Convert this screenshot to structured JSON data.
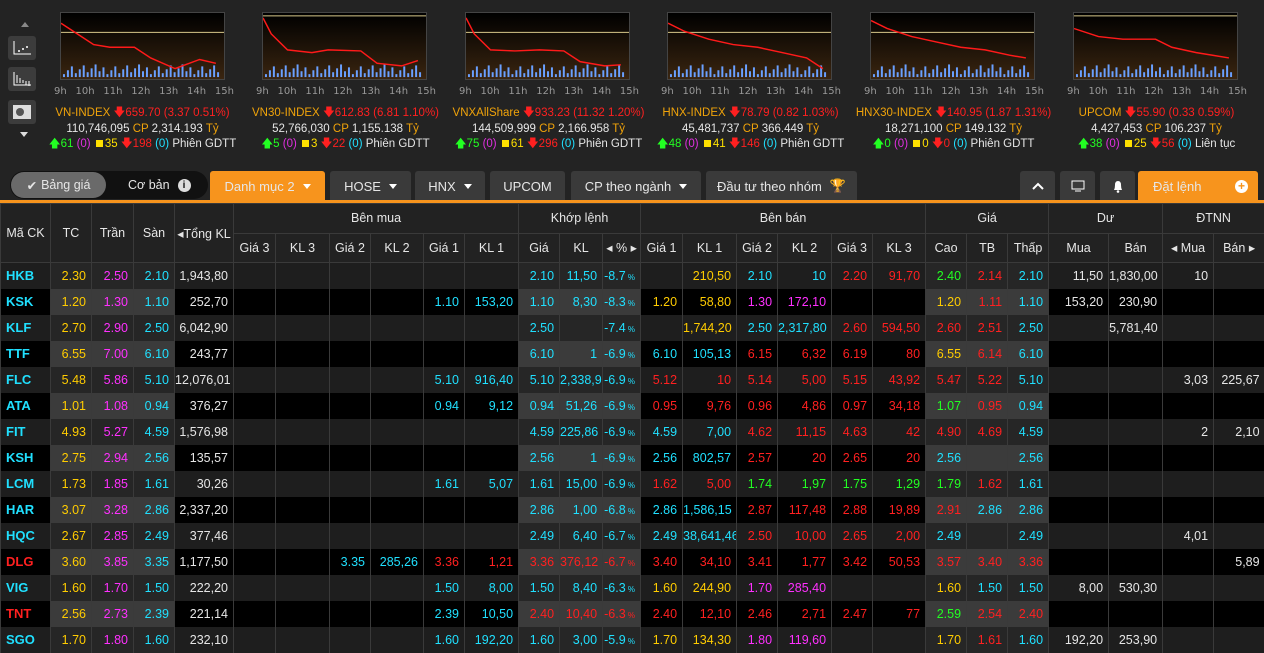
{
  "sidebar": {
    "icons": [
      "scatter-chart-icon",
      "bar-chart-icon",
      "layout-icon"
    ]
  },
  "mini_charts": {
    "time_labels": [
      "9h",
      "10h",
      "11h",
      "12h",
      "13h",
      "14h",
      "15h"
    ]
  },
  "indices": [
    {
      "name": "VN-INDEX",
      "value": "659.70",
      "change": "(3.37 0.51%)",
      "volume": "110,746,095",
      "cp": "CP",
      "amount": "2,314.193",
      "unit": "Tỷ",
      "up": "61",
      "up_c": "(0)",
      "ref": "35",
      "down": "198",
      "down_c": "(0)",
      "session": "Phiên GDTT"
    },
    {
      "name": "VN30-INDEX",
      "value": "612.83",
      "change": "(6.81 1.10%)",
      "volume": "52,766,030",
      "cp": "CP",
      "amount": "1,155.138",
      "unit": "Tỷ",
      "up": "5",
      "up_c": "(0)",
      "ref": "3",
      "down": "22",
      "down_c": "(0)",
      "session": "Phiên GDTT"
    },
    {
      "name": "VNXAllShare",
      "value": "933.23",
      "change": "(11.32 1.20%)",
      "volume": "144,509,999",
      "cp": "CP",
      "amount": "2,166.958",
      "unit": "Tỷ",
      "up": "75",
      "up_c": "(0)",
      "ref": "61",
      "down": "296",
      "down_c": "(0)",
      "session": "Phiên GDTT"
    },
    {
      "name": "HNX-INDEX",
      "value": "78.79",
      "change": "(0.82 1.03%)",
      "volume": "45,481,737",
      "cp": "CP",
      "amount": "366.449",
      "unit": "Tỷ",
      "up": "48",
      "up_c": "(0)",
      "ref": "41",
      "down": "146",
      "down_c": "(0)",
      "session": "Phiên GDTT"
    },
    {
      "name": "HNX30-INDEX",
      "value": "140.95",
      "change": "(1.87 1.31%)",
      "volume": "18,271,100",
      "cp": "CP",
      "amount": "149.132",
      "unit": "Tỷ",
      "up": "0",
      "up_c": "(0)",
      "ref": "0",
      "down": "0",
      "down_c": "(0)",
      "session": "Phiên GDTT"
    },
    {
      "name": "UPCOM",
      "value": "55.90",
      "change": "(0.33 0.59%)",
      "volume": "4,427,453",
      "cp": "CP",
      "amount": "106.237",
      "unit": "Tỷ",
      "up": "38",
      "up_c": "(0)",
      "ref": "25",
      "down": "56",
      "down_c": "(0)",
      "session": "Liên tục"
    }
  ],
  "toolbar": {
    "toggle_active": "Bảng giá",
    "toggle_other": "Cơ bản",
    "tabs": [
      {
        "label": "Danh mục 2",
        "caret": true,
        "active": true
      },
      {
        "label": "HOSE",
        "caret": true
      },
      {
        "label": "HNX",
        "caret": true
      },
      {
        "label": "UPCOM"
      },
      {
        "label": "CP theo ngành",
        "caret": true
      },
      {
        "label": "Đầu tư theo nhóm"
      }
    ],
    "order_label": "Đặt lệnh"
  },
  "colors": {
    "ceiling": "#ff30ff",
    "floor": "#20e0ff",
    "ref": "#ffcc00",
    "up": "#22ff22",
    "down": "#ff2020",
    "text": "#e6e6e6",
    "accent": "#f7941d"
  },
  "table": {
    "groups": {
      "symbol": "Mã CK",
      "tc": "TC",
      "tran": "Trần",
      "san": "Sàn",
      "total": "Tổng KL",
      "buy": "Bên mua",
      "match": "Khớp lệnh",
      "sell": "Bên bán",
      "price": "Giá",
      "remain": "Dư",
      "foreign": "ĐTNN"
    },
    "subheaders": [
      "Giá 3",
      "KL 3",
      "Giá 2",
      "KL 2",
      "Giá 1",
      "KL 1",
      "Giá",
      "KL",
      "%",
      "Giá 1",
      "KL 1",
      "Giá 2",
      "KL 2",
      "Giá 3",
      "KL 3",
      "Cao",
      "TB",
      "Thấp",
      "Mua",
      "Bán",
      "Mua",
      "Bán"
    ],
    "rows": [
      [
        "HKB",
        "2.30",
        "2.50",
        "2.10",
        "1,943,80",
        "",
        "",
        "",
        "",
        "",
        "",
        "2.10",
        "11,50",
        "-8.7",
        "",
        "210,50",
        "2.10",
        "10",
        "2.20",
        "91,70",
        "2.40",
        "2.14",
        "2.10",
        "11,50",
        "1,830,00",
        "10",
        ""
      ],
      [
        "KSK",
        "1.20",
        "1.30",
        "1.10",
        "252,70",
        "",
        "",
        "",
        "",
        "1.10",
        "153,20",
        "1.10",
        "8,30",
        "-8.3",
        "1.20",
        "58,80",
        "1.30",
        "172,10",
        "",
        "",
        "1.20",
        "1.11",
        "1.10",
        "153,20",
        "230,90",
        "",
        ""
      ],
      [
        "KLF",
        "2.70",
        "2.90",
        "2.50",
        "6,042,90",
        "",
        "",
        "",
        "",
        "",
        "",
        "2.50",
        "",
        "-7.4",
        "",
        "1,744,20",
        "2.50",
        "2,317,80",
        "2.60",
        "594,50",
        "2.60",
        "2.51",
        "2.50",
        "",
        "5,781,40",
        "",
        ""
      ],
      [
        "TTF",
        "6.55",
        "7.00",
        "6.10",
        "243,77",
        "",
        "",
        "",
        "",
        "",
        "",
        "6.10",
        "1",
        "-6.9",
        "6.10",
        "105,13",
        "6.15",
        "6,32",
        "6.19",
        "80",
        "6.55",
        "6.14",
        "6.10",
        "",
        "",
        "",
        ""
      ],
      [
        "FLC",
        "5.48",
        "5.86",
        "5.10",
        "12,076,01",
        "",
        "",
        "",
        "",
        "5.10",
        "916,40",
        "5.10",
        "2,338,9",
        "-6.9",
        "5.12",
        "10",
        "5.14",
        "5,00",
        "5.15",
        "43,92",
        "5.47",
        "5.22",
        "5.10",
        "",
        "",
        "3,03",
        "225,67"
      ],
      [
        "ATA",
        "1.01",
        "1.08",
        "0.94",
        "376,27",
        "",
        "",
        "",
        "",
        "0.94",
        "9,12",
        "0.94",
        "51,26",
        "-6.9",
        "0.95",
        "9,76",
        "0.96",
        "4,86",
        "0.97",
        "34,18",
        "1.07",
        "0.95",
        "0.94",
        "",
        "",
        "",
        ""
      ],
      [
        "FIT",
        "4.93",
        "5.27",
        "4.59",
        "1,576,98",
        "",
        "",
        "",
        "",
        "",
        "",
        "4.59",
        "225,86",
        "-6.9",
        "4.59",
        "7,00",
        "4.62",
        "11,15",
        "4.63",
        "42",
        "4.90",
        "4.69",
        "4.59",
        "",
        "",
        "2",
        "2,10"
      ],
      [
        "KSH",
        "2.75",
        "2.94",
        "2.56",
        "135,57",
        "",
        "",
        "",
        "",
        "",
        "",
        "2.56",
        "1",
        "-6.9",
        "2.56",
        "802,57",
        "2.57",
        "20",
        "2.65",
        "20",
        "2.56",
        "",
        "2.56",
        "",
        "",
        "",
        ""
      ],
      [
        "LCM",
        "1.73",
        "1.85",
        "1.61",
        "30,26",
        "",
        "",
        "",
        "",
        "1.61",
        "5,07",
        "1.61",
        "15,00",
        "-6.9",
        "1.62",
        "5,00",
        "1.74",
        "1,97",
        "1.75",
        "1,29",
        "1.79",
        "1.62",
        "1.61",
        "",
        "",
        "",
        ""
      ],
      [
        "HAR",
        "3.07",
        "3.28",
        "2.86",
        "2,337,20",
        "",
        "",
        "",
        "",
        "",
        "",
        "2.86",
        "1,00",
        "-6.8",
        "2.86",
        "1,586,15",
        "2.87",
        "117,48",
        "2.88",
        "19,89",
        "2.91",
        "2.86",
        "2.86",
        "",
        "",
        "",
        ""
      ],
      [
        "HQC",
        "2.67",
        "2.85",
        "2.49",
        "377,46",
        "",
        "",
        "",
        "",
        "",
        "",
        "2.49",
        "6,40",
        "-6.7",
        "2.49",
        "38,641,46",
        "2.50",
        "10,00",
        "2.65",
        "2,00",
        "2.49",
        "",
        "2.49",
        "",
        "",
        "4,01",
        ""
      ],
      [
        "DLG",
        "3.60",
        "3.85",
        "3.35",
        "1,177,50",
        "",
        "",
        "3.35",
        "285,26",
        "3.36",
        "1,21",
        "3.36",
        "376,12",
        "-6.7",
        "3.40",
        "34,10",
        "3.41",
        "1,77",
        "3.42",
        "50,53",
        "3.57",
        "3.40",
        "3.36",
        "",
        "",
        "",
        "5,89"
      ],
      [
        "VIG",
        "1.60",
        "1.70",
        "1.50",
        "222,20",
        "",
        "",
        "",
        "",
        "1.50",
        "8,00",
        "1.50",
        "8,40",
        "-6.3",
        "1.60",
        "244,90",
        "1.70",
        "285,40",
        "",
        "",
        "1.60",
        "1.50",
        "1.50",
        "8,00",
        "530,30",
        "",
        ""
      ],
      [
        "TNT",
        "2.56",
        "2.73",
        "2.39",
        "221,14",
        "",
        "",
        "",
        "",
        "2.39",
        "10,50",
        "2.40",
        "10,40",
        "-6.3",
        "2.40",
        "12,10",
        "2.46",
        "2,71",
        "2.47",
        "77",
        "2.59",
        "2.54",
        "2.40",
        "",
        "",
        "",
        ""
      ],
      [
        "SGO",
        "1.70",
        "1.80",
        "1.60",
        "232,10",
        "",
        "",
        "",
        "",
        "1.60",
        "192,20",
        "1.60",
        "3,00",
        "-5.9",
        "1.70",
        "134,30",
        "1.80",
        "119,60",
        "",
        "",
        "1.70",
        "1.61",
        "1.60",
        "192,20",
        "253,90",
        "",
        ""
      ]
    ]
  }
}
